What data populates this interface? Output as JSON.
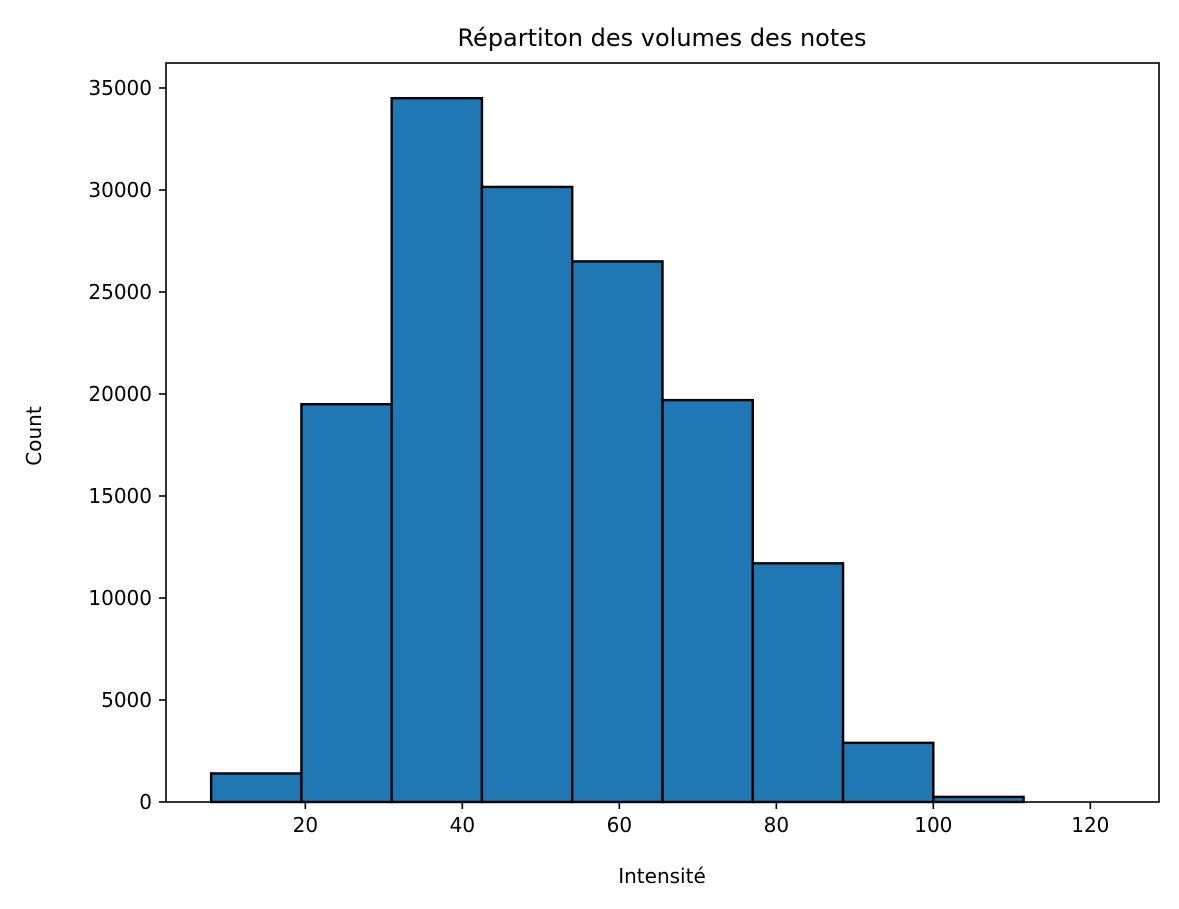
{
  "chart_data": {
    "type": "bar",
    "title": "Répartiton des volumes des notes",
    "xlabel": "Intensité",
    "ylabel": "Count",
    "bar_color": "#1f77b4",
    "edge_color": "#000000",
    "grid": false,
    "legend": "none",
    "xlim": [
      2.25,
      128.75
    ],
    "ylim": [
      0,
      36225
    ],
    "bins": [
      {
        "start": 8.0,
        "end": 19.5,
        "count": 1400
      },
      {
        "start": 19.5,
        "end": 31.0,
        "count": 19500
      },
      {
        "start": 31.0,
        "end": 42.5,
        "count": 34500
      },
      {
        "start": 42.5,
        "end": 54.0,
        "count": 30150
      },
      {
        "start": 54.0,
        "end": 65.5,
        "count": 26500
      },
      {
        "start": 65.5,
        "end": 77.0,
        "count": 19700
      },
      {
        "start": 77.0,
        "end": 88.5,
        "count": 11700
      },
      {
        "start": 88.5,
        "end": 100.0,
        "count": 2900
      },
      {
        "start": 100.0,
        "end": 111.5,
        "count": 250
      },
      {
        "start": 111.5,
        "end": 123.0,
        "count": 0
      }
    ],
    "x_ticks": [
      20,
      40,
      60,
      80,
      100,
      120
    ],
    "x_tick_labels": [
      "20",
      "40",
      "60",
      "80",
      "100",
      "120"
    ],
    "y_ticks": [
      0,
      5000,
      10000,
      15000,
      20000,
      25000,
      30000,
      35000
    ],
    "y_tick_labels": [
      "0",
      "5000",
      "10000",
      "15000",
      "20000",
      "25000",
      "30000",
      "35000"
    ]
  }
}
